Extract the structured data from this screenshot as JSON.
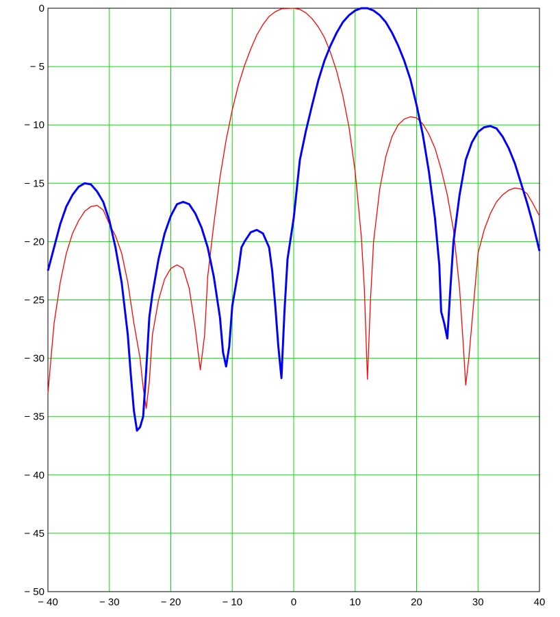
{
  "chart_data": {
    "type": "line",
    "title": "",
    "xlabel": "",
    "ylabel": "",
    "xlim": [
      -40,
      40
    ],
    "ylim": [
      -50,
      0
    ],
    "grid": true,
    "x_ticks": [
      -40,
      -30,
      -20,
      -10,
      0,
      10,
      20,
      30,
      40
    ],
    "x_tick_labels": [
      "− 40",
      "− 30",
      "− 20",
      "− 10",
      "0",
      "10",
      "20",
      "30",
      "40"
    ],
    "y_ticks": [
      0,
      -5,
      -10,
      -15,
      -20,
      -25,
      -30,
      -35,
      -40,
      -45,
      -50
    ],
    "y_tick_labels": [
      "0",
      "− 5",
      "− 10",
      "− 15",
      "− 20",
      "− 25",
      "− 30",
      "− 35",
      "− 40",
      "− 45",
      "− 50"
    ],
    "colors": {
      "grid": "#00e000",
      "axis": "#000000",
      "background": "#ffffff"
    },
    "series": [
      {
        "color": "#ff0000",
        "line_style": "thin",
        "points": [
          [
            -40,
            -33
          ],
          [
            -39,
            -27
          ],
          [
            -38,
            -23.5
          ],
          [
            -37,
            -21
          ],
          [
            -36,
            -19.3
          ],
          [
            -35,
            -18.2
          ],
          [
            -34,
            -17.4
          ],
          [
            -33,
            -17.0
          ],
          [
            -32,
            -16.9
          ],
          [
            -31,
            -17.3
          ],
          [
            -30,
            -18.5
          ],
          [
            -29,
            -19.5
          ],
          [
            -28,
            -21
          ],
          [
            -27,
            -23.5
          ],
          [
            -26,
            -27
          ],
          [
            -25,
            -30
          ],
          [
            -24.5,
            -32.5
          ],
          [
            -24,
            -34.3
          ],
          [
            -23.5,
            -32
          ],
          [
            -23,
            -28
          ],
          [
            -22,
            -25
          ],
          [
            -21,
            -23.2
          ],
          [
            -20,
            -22.3
          ],
          [
            -19,
            -22.0
          ],
          [
            -18,
            -22.3
          ],
          [
            -17,
            -24
          ],
          [
            -16,
            -27.5
          ],
          [
            -15.2,
            -31
          ],
          [
            -14.5,
            -28
          ],
          [
            -14,
            -23
          ],
          [
            -13,
            -18.5
          ],
          [
            -12,
            -14.5
          ],
          [
            -11,
            -11.3
          ],
          [
            -10,
            -8.7
          ],
          [
            -9,
            -6.6
          ],
          [
            -8,
            -4.9
          ],
          [
            -7,
            -3.5
          ],
          [
            -6,
            -2.3
          ],
          [
            -5,
            -1.4
          ],
          [
            -4,
            -0.7
          ],
          [
            -3,
            -0.3
          ],
          [
            -2,
            -0.05
          ],
          [
            0,
            0
          ],
          [
            1,
            -0.1
          ],
          [
            2,
            -0.4
          ],
          [
            3,
            -0.9
          ],
          [
            4,
            -1.6
          ],
          [
            5,
            -2.5
          ],
          [
            6,
            -3.8
          ],
          [
            7,
            -5.4
          ],
          [
            8,
            -7.5
          ],
          [
            9,
            -10.2
          ],
          [
            10,
            -14
          ],
          [
            11,
            -19.5
          ],
          [
            11.5,
            -24
          ],
          [
            12,
            -31.8
          ],
          [
            12.5,
            -25
          ],
          [
            13,
            -20
          ],
          [
            14,
            -15.5
          ],
          [
            15,
            -12.7
          ],
          [
            16,
            -11
          ],
          [
            17,
            -10
          ],
          [
            18,
            -9.5
          ],
          [
            19,
            -9.3
          ],
          [
            20,
            -9.4
          ],
          [
            21,
            -9.9
          ],
          [
            22,
            -10.8
          ],
          [
            23,
            -12
          ],
          [
            24,
            -13.8
          ],
          [
            25,
            -16
          ],
          [
            26,
            -19
          ],
          [
            27,
            -24
          ],
          [
            27.5,
            -28
          ],
          [
            28,
            -32.3
          ],
          [
            28.5,
            -30
          ],
          [
            29,
            -27
          ],
          [
            30,
            -21
          ],
          [
            31,
            -19
          ],
          [
            32,
            -17.6
          ],
          [
            33,
            -16.6
          ],
          [
            34,
            -16
          ],
          [
            35,
            -15.6
          ],
          [
            36,
            -15.4
          ],
          [
            37,
            -15.5
          ],
          [
            38,
            -15.9
          ],
          [
            39,
            -16.8
          ],
          [
            40,
            -17.8
          ]
        ]
      },
      {
        "color": "#0000ff",
        "line_style": "thick",
        "points": [
          [
            -40,
            -22.5
          ],
          [
            -39,
            -20.5
          ],
          [
            -38,
            -18.5
          ],
          [
            -37,
            -17
          ],
          [
            -36,
            -16
          ],
          [
            -35,
            -15.3
          ],
          [
            -34,
            -15.0
          ],
          [
            -33,
            -15.1
          ],
          [
            -32,
            -15.7
          ],
          [
            -31,
            -16.6
          ],
          [
            -30,
            -18.2
          ],
          [
            -29,
            -20.5
          ],
          [
            -28,
            -23.5
          ],
          [
            -27,
            -28
          ],
          [
            -26.5,
            -31.5
          ],
          [
            -26,
            -34.5
          ],
          [
            -25.5,
            -36.2
          ],
          [
            -25,
            -35.9
          ],
          [
            -24.5,
            -35
          ],
          [
            -24,
            -31
          ],
          [
            -23.5,
            -26.5
          ],
          [
            -23,
            -24.5
          ],
          [
            -22,
            -21.5
          ],
          [
            -21,
            -19.3
          ],
          [
            -20,
            -17.8
          ],
          [
            -19,
            -16.8
          ],
          [
            -18,
            -16.6
          ],
          [
            -17,
            -16.8
          ],
          [
            -16,
            -17.6
          ],
          [
            -15,
            -18.8
          ],
          [
            -14,
            -20.5
          ],
          [
            -13,
            -23
          ],
          [
            -12,
            -26.5
          ],
          [
            -11.5,
            -29.5
          ],
          [
            -11,
            -30.7
          ],
          [
            -10.5,
            -29
          ],
          [
            -10,
            -25.5
          ],
          [
            -9,
            -22.5
          ],
          [
            -8.5,
            -20.5
          ],
          [
            -8,
            -20
          ],
          [
            -7,
            -19.2
          ],
          [
            -6,
            -19.0
          ],
          [
            -5,
            -19.3
          ],
          [
            -4,
            -20.5
          ],
          [
            -3.5,
            -22.5
          ],
          [
            -3,
            -25.5
          ],
          [
            -2.5,
            -29
          ],
          [
            -2,
            -31.7
          ],
          [
            -1.5,
            -26
          ],
          [
            -1,
            -21.5
          ],
          [
            0,
            -18
          ],
          [
            0.5,
            -15.5
          ],
          [
            1,
            -13
          ],
          [
            2,
            -10.5
          ],
          [
            3,
            -8.3
          ],
          [
            4,
            -6.2
          ],
          [
            5,
            -4.5
          ],
          [
            6,
            -3.2
          ],
          [
            7,
            -2.1
          ],
          [
            8,
            -1.2
          ],
          [
            9,
            -0.6
          ],
          [
            10,
            -0.2
          ],
          [
            11,
            0
          ],
          [
            12,
            0
          ],
          [
            13,
            -0.2
          ],
          [
            14,
            -0.6
          ],
          [
            15,
            -1.2
          ],
          [
            16,
            -2.1
          ],
          [
            17,
            -3.2
          ],
          [
            18,
            -4.5
          ],
          [
            19,
            -6.1
          ],
          [
            20,
            -8.3
          ],
          [
            21,
            -10.8
          ],
          [
            22,
            -14
          ],
          [
            23,
            -18
          ],
          [
            23.7,
            -22
          ],
          [
            24,
            -26
          ],
          [
            24.5,
            -27
          ],
          [
            25,
            -28.3
          ],
          [
            25.5,
            -24
          ],
          [
            26,
            -20
          ],
          [
            27,
            -16
          ],
          [
            28,
            -13
          ],
          [
            29,
            -11.5
          ],
          [
            30,
            -10.6
          ],
          [
            31,
            -10.2
          ],
          [
            32,
            -10.1
          ],
          [
            33,
            -10.3
          ],
          [
            34,
            -11
          ],
          [
            35,
            -12
          ],
          [
            36,
            -13.3
          ],
          [
            37,
            -15
          ],
          [
            38,
            -16.7
          ],
          [
            39,
            -18.6
          ],
          [
            40,
            -20.8
          ]
        ]
      }
    ]
  }
}
